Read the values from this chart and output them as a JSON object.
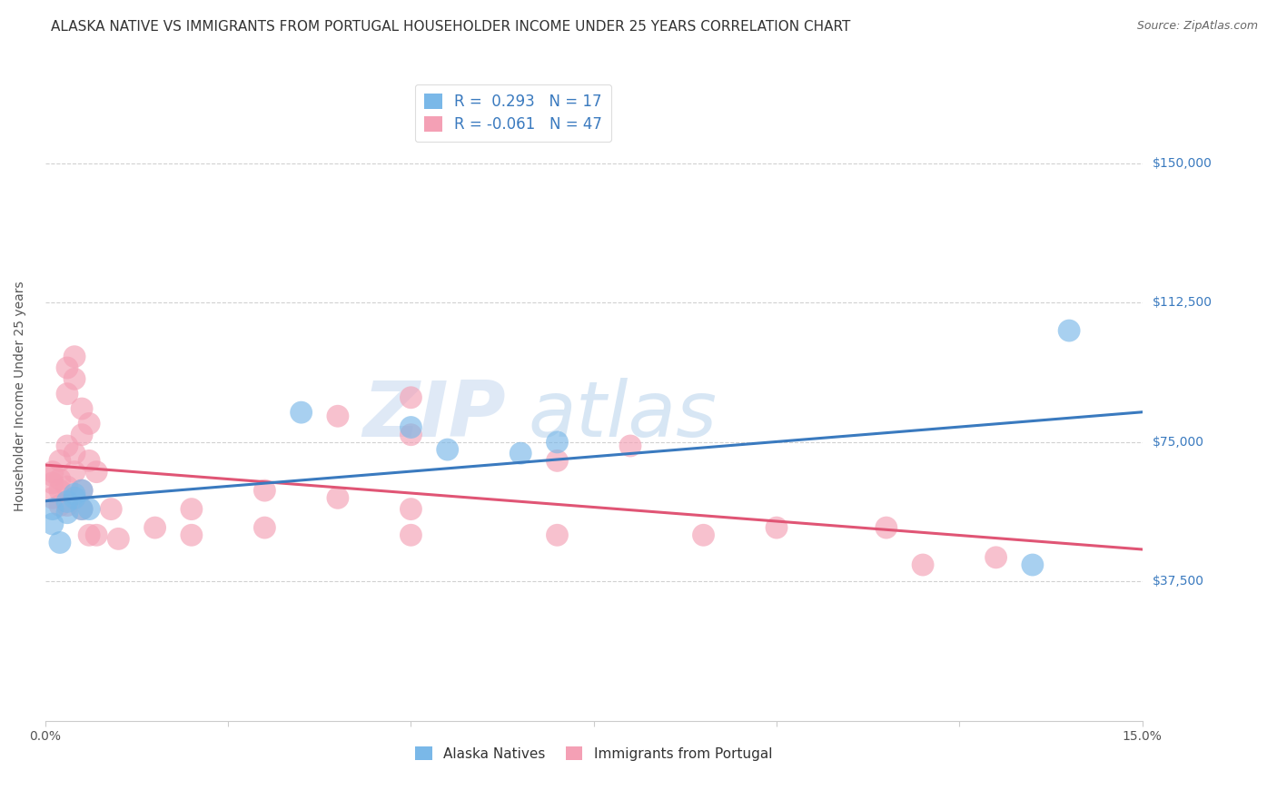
{
  "title": "ALASKA NATIVE VS IMMIGRANTS FROM PORTUGAL HOUSEHOLDER INCOME UNDER 25 YEARS CORRELATION CHART",
  "source": "Source: ZipAtlas.com",
  "xmin": 0.0,
  "xmax": 0.15,
  "ymin": 0,
  "ymax": 175000,
  "ylabel_ticks": [
    37500,
    75000,
    112500,
    150000
  ],
  "ylabel_labels": [
    "$37,500",
    "$75,000",
    "$112,500",
    "$150,000"
  ],
  "legend_label1": "R =  0.293   N = 17",
  "legend_label2": "R = -0.061   N = 47",
  "legend_label_bottom1": "Alaska Natives",
  "legend_label_bottom2": "Immigrants from Portugal",
  "watermark_zip": "ZIP",
  "watermark_atlas": "atlas",
  "blue_color": "#7ab8e8",
  "pink_color": "#f4a0b5",
  "blue_line_color": "#3a7abf",
  "pink_line_color": "#e05575",
  "blue_scatter": [
    [
      0.001,
      57000
    ],
    [
      0.001,
      53000
    ],
    [
      0.002,
      48000
    ],
    [
      0.003,
      59000
    ],
    [
      0.003,
      56000
    ],
    [
      0.004,
      61000
    ],
    [
      0.004,
      60000
    ],
    [
      0.005,
      62000
    ],
    [
      0.005,
      57000
    ],
    [
      0.006,
      57000
    ],
    [
      0.035,
      83000
    ],
    [
      0.05,
      79000
    ],
    [
      0.055,
      73000
    ],
    [
      0.065,
      72000
    ],
    [
      0.07,
      75000
    ],
    [
      0.135,
      42000
    ],
    [
      0.14,
      105000
    ]
  ],
  "pink_scatter": [
    [
      0.001,
      67000
    ],
    [
      0.001,
      66000
    ],
    [
      0.001,
      64000
    ],
    [
      0.001,
      60000
    ],
    [
      0.002,
      70000
    ],
    [
      0.002,
      65000
    ],
    [
      0.002,
      58000
    ],
    [
      0.002,
      62000
    ],
    [
      0.003,
      95000
    ],
    [
      0.003,
      88000
    ],
    [
      0.003,
      74000
    ],
    [
      0.003,
      63000
    ],
    [
      0.003,
      58000
    ],
    [
      0.004,
      98000
    ],
    [
      0.004,
      92000
    ],
    [
      0.004,
      72000
    ],
    [
      0.004,
      67000
    ],
    [
      0.005,
      84000
    ],
    [
      0.005,
      77000
    ],
    [
      0.005,
      62000
    ],
    [
      0.005,
      57000
    ],
    [
      0.006,
      80000
    ],
    [
      0.006,
      70000
    ],
    [
      0.006,
      50000
    ],
    [
      0.007,
      67000
    ],
    [
      0.007,
      50000
    ],
    [
      0.009,
      57000
    ],
    [
      0.01,
      49000
    ],
    [
      0.015,
      52000
    ],
    [
      0.02,
      57000
    ],
    [
      0.02,
      50000
    ],
    [
      0.03,
      62000
    ],
    [
      0.03,
      52000
    ],
    [
      0.04,
      82000
    ],
    [
      0.04,
      60000
    ],
    [
      0.05,
      87000
    ],
    [
      0.05,
      77000
    ],
    [
      0.05,
      57000
    ],
    [
      0.05,
      50000
    ],
    [
      0.07,
      70000
    ],
    [
      0.07,
      50000
    ],
    [
      0.08,
      74000
    ],
    [
      0.09,
      50000
    ],
    [
      0.1,
      52000
    ],
    [
      0.115,
      52000
    ],
    [
      0.12,
      42000
    ],
    [
      0.13,
      44000
    ]
  ],
  "background_color": "#ffffff",
  "grid_color": "#cccccc",
  "title_fontsize": 11,
  "axis_label_fontsize": 10,
  "tick_fontsize": 10,
  "source_fontsize": 9,
  "scatter_size": 320,
  "scatter_alpha": 0.65
}
